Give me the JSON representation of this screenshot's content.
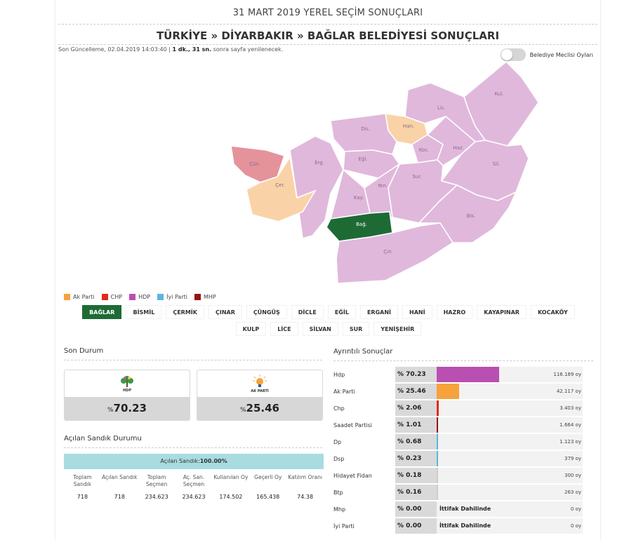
{
  "header": {
    "supertitle": "31 MART 2019 YEREL SEÇİM SONUÇLARI",
    "title": "TÜRKİYE » DİYARBAKIR » BAĞLAR BELEDİYESİ SONUÇLARI",
    "update_prefix": "Son Güncelleme, 02.04.2019 14:03:40 | ",
    "update_countdown": "1 dk., 31 sn.",
    "update_suffix": " sonra sayfa yenilenecek.",
    "toggle_label": "Belediye Meclisi Oyları"
  },
  "map": {
    "regions": [
      {
        "label": "Kul.",
        "party": "HDP"
      },
      {
        "label": "Lic.",
        "party": "HDP"
      },
      {
        "label": "Han.",
        "party": "Ak Parti"
      },
      {
        "label": "Dic.",
        "party": "HDP"
      },
      {
        "label": "Koc.",
        "party": "HDP"
      },
      {
        "label": "Haz.",
        "party": "HDP"
      },
      {
        "label": "Eğl.",
        "party": "HDP"
      },
      {
        "label": "Erg.",
        "party": "HDP"
      },
      {
        "label": "Çün.",
        "party": "CHP"
      },
      {
        "label": "Çer.",
        "party": "Ak Parti"
      },
      {
        "label": "Sil.",
        "party": "HDP"
      },
      {
        "label": "Sur.",
        "party": "HDP"
      },
      {
        "label": "Yen.",
        "party": "HDP"
      },
      {
        "label": "Kay.",
        "party": "HDP"
      },
      {
        "label": "Bis.",
        "party": "HDP"
      },
      {
        "label": "Bağ.",
        "party": "HDP",
        "selected": true
      },
      {
        "label": "Çın.",
        "party": "HDP"
      }
    ],
    "colors": {
      "HDP": "#e0b8dc",
      "Ak Parti": "#f9d3a7",
      "CHP": "#e4939b",
      "selected": "#1e6a35"
    }
  },
  "legend": [
    {
      "label": "Ak Parti",
      "color": "#f6a33c"
    },
    {
      "label": "CHP",
      "color": "#e2291e"
    },
    {
      "label": "HDP",
      "color": "#b94fb1"
    },
    {
      "label": "İyi Parti",
      "color": "#5bb5e2"
    },
    {
      "label": "MHP",
      "color": "#9b1111"
    }
  ],
  "districts": [
    "BAĞLAR",
    "BİSMİL",
    "ÇERMİK",
    "ÇINAR",
    "ÇÜNGÜŞ",
    "DİCLE",
    "EĞİL",
    "ERGANİ",
    "HANİ",
    "HAZRO",
    "KAYAPINAR",
    "KOCAKÖY",
    "KULP",
    "LİCE",
    "SİLVAN",
    "SUR",
    "YENİŞEHİR"
  ],
  "son_durum": {
    "title": "Son Durum",
    "cards": [
      {
        "party": "HDP",
        "pct_symbol": "%",
        "pct": "70.23"
      },
      {
        "party": "AK PARTİ",
        "pct_symbol": "%",
        "pct": "25.46"
      }
    ]
  },
  "sandik": {
    "title": "Açılan Sandık Durumu",
    "bar_label": "Açılan Sandık:",
    "bar_value": "100.00%",
    "stats": [
      {
        "label": "Toplam Sandık",
        "value": "718"
      },
      {
        "label": "Açılan Sandık",
        "value": "718"
      },
      {
        "label": "Toplam Seçmen",
        "value": "234.623"
      },
      {
        "label": "Aç. San. Seçmen",
        "value": "234.623"
      },
      {
        "label": "Kullanılan Oy",
        "value": "174.502"
      },
      {
        "label": "Geçerli Oy",
        "value": "165.438"
      },
      {
        "label": "Katılım Oranı",
        "value": "74.38"
      }
    ]
  },
  "detailed": {
    "title": "Ayrıntılı Sonuçlar",
    "rows": [
      {
        "name": "Hdp",
        "pct": "% 70.23",
        "share": 70.23,
        "votes": "116.189 oy",
        "color": "#b94fb1",
        "note": ""
      },
      {
        "name": "Ak Parti",
        "pct": "% 25.46",
        "share": 25.46,
        "votes": "42.117 oy",
        "color": "#f6a33c",
        "note": ""
      },
      {
        "name": "Chp",
        "pct": "% 2.06",
        "share": 2.06,
        "votes": "3.403 oy",
        "color": "#e2291e",
        "note": ""
      },
      {
        "name": "Saadet Partisi",
        "pct": "% 1.01",
        "share": 1.01,
        "votes": "1.664 oy",
        "color": "#9b1111",
        "note": ""
      },
      {
        "name": "Dp",
        "pct": "% 0.68",
        "share": 0.68,
        "votes": "1.123 oy",
        "color": "#5bb5e2",
        "note": ""
      },
      {
        "name": "Dsp",
        "pct": "% 0.23",
        "share": 0.23,
        "votes": "379 oy",
        "color": "#5bb5e2",
        "note": ""
      },
      {
        "name": "Hidayet Fidan",
        "pct": "% 0.18",
        "share": 0.18,
        "votes": "300 oy",
        "color": "#cccccc",
        "note": ""
      },
      {
        "name": "Btp",
        "pct": "% 0.16",
        "share": 0.16,
        "votes": "263 oy",
        "color": "#cccccc",
        "note": ""
      },
      {
        "name": "Mhp",
        "pct": "% 0.00",
        "share": 0,
        "votes": "0 oy",
        "color": "#9b1111",
        "note": "İttifak Dahilinde"
      },
      {
        "name": "İyi Parti",
        "pct": "% 0.00",
        "share": 0,
        "votes": "0 oy",
        "color": "#5bb5e2",
        "note": "İttifak Dahilinde"
      }
    ]
  }
}
